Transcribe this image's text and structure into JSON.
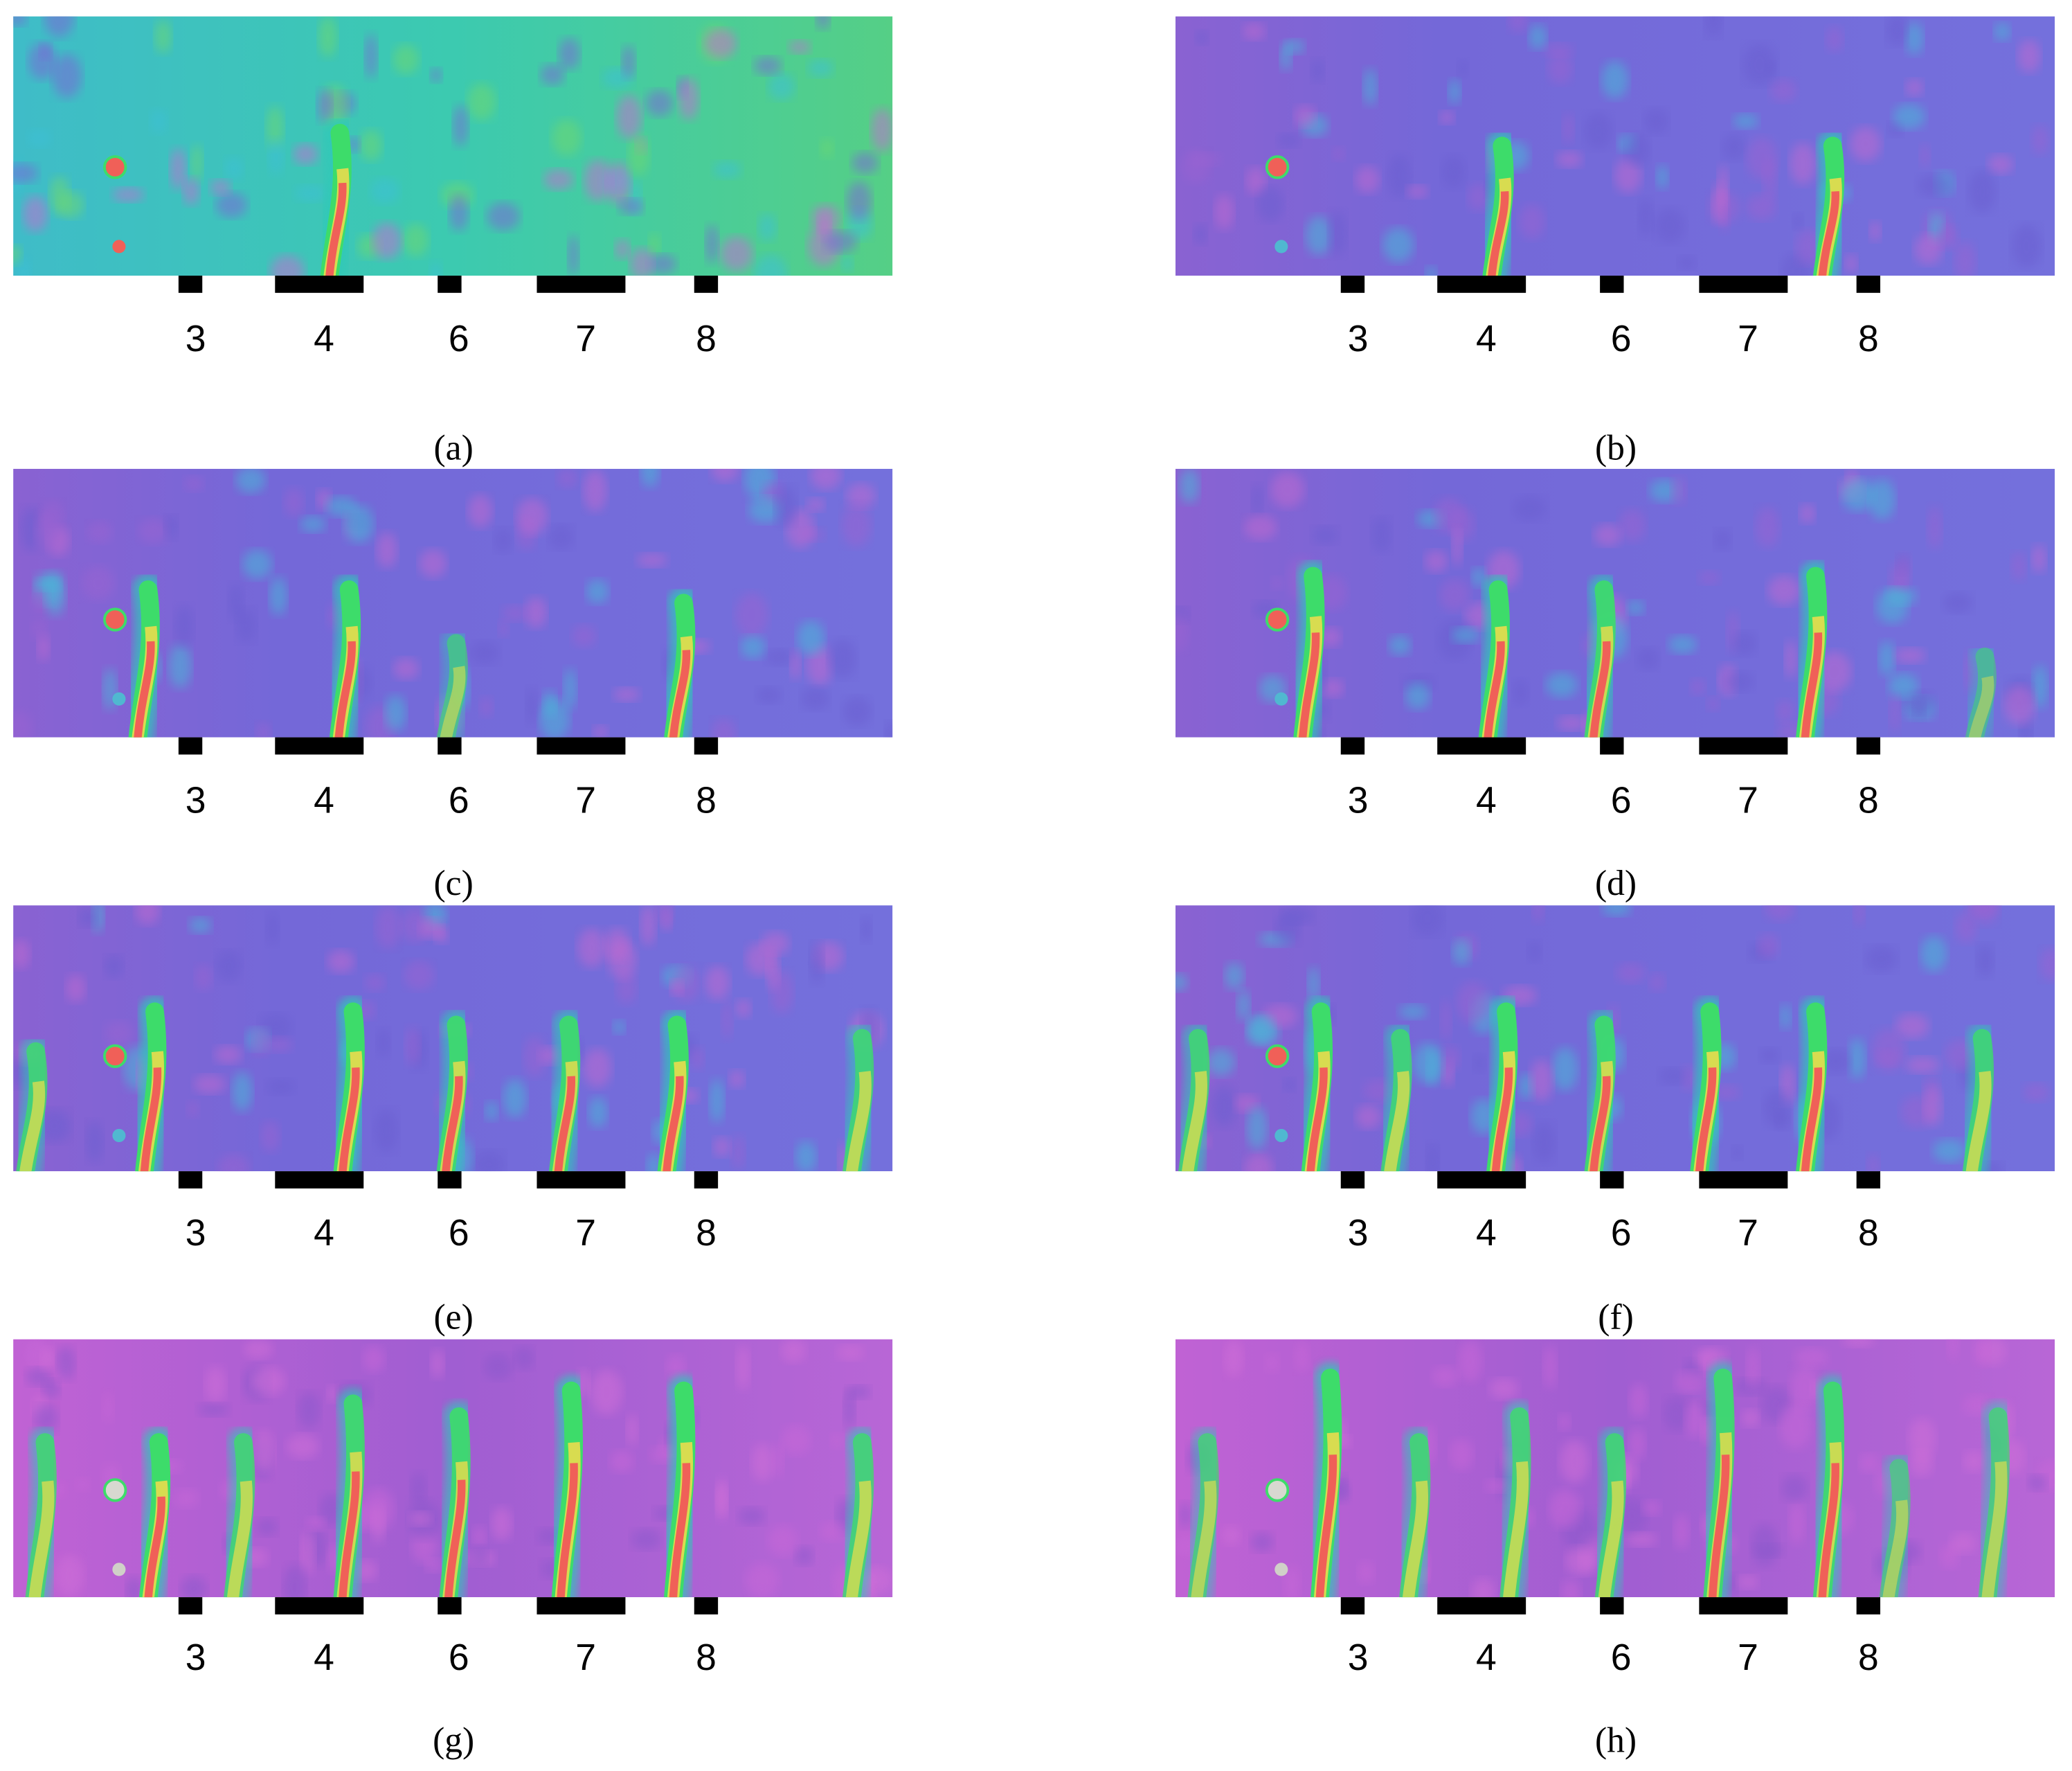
{
  "panels": [
    {
      "caption": "(a)",
      "sensors": [
        "3",
        "4",
        "6",
        "7",
        "8"
      ]
    },
    {
      "caption": "(b)",
      "sensors": [
        "3",
        "4",
        "6",
        "7",
        "8"
      ]
    },
    {
      "caption": "(c)",
      "sensors": [
        "3",
        "4",
        "6",
        "7",
        "8"
      ]
    },
    {
      "caption": "(d)",
      "sensors": [
        "3",
        "4",
        "6",
        "7",
        "8"
      ]
    },
    {
      "caption": "(e)",
      "sensors": [
        "3",
        "4",
        "6",
        "7",
        "8"
      ]
    },
    {
      "caption": "(f)",
      "sensors": [
        "3",
        "4",
        "6",
        "7",
        "8"
      ]
    },
    {
      "caption": "(g)",
      "sensors": [
        "3",
        "4",
        "6",
        "7",
        "8"
      ]
    },
    {
      "caption": "(h)",
      "sensors": [
        "3",
        "4",
        "6",
        "7",
        "8"
      ]
    }
  ]
}
